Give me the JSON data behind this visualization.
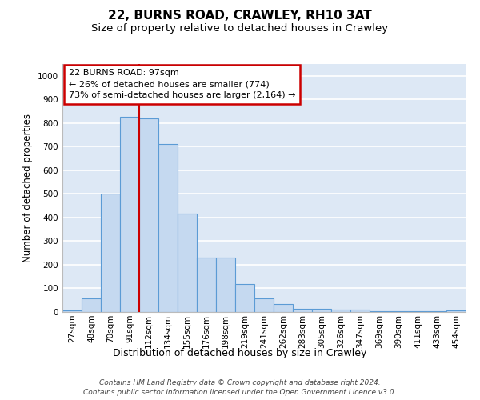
{
  "title1": "22, BURNS ROAD, CRAWLEY, RH10 3AT",
  "title2": "Size of property relative to detached houses in Crawley",
  "xlabel": "Distribution of detached houses by size in Crawley",
  "ylabel": "Number of detached properties",
  "categories": [
    "27sqm",
    "48sqm",
    "70sqm",
    "91sqm",
    "112sqm",
    "134sqm",
    "155sqm",
    "176sqm",
    "198sqm",
    "219sqm",
    "241sqm",
    "262sqm",
    "283sqm",
    "305sqm",
    "326sqm",
    "347sqm",
    "369sqm",
    "390sqm",
    "411sqm",
    "433sqm",
    "454sqm"
  ],
  "values": [
    8,
    57,
    500,
    825,
    820,
    710,
    415,
    230,
    230,
    120,
    57,
    35,
    15,
    15,
    10,
    10,
    5,
    5,
    3,
    3,
    8
  ],
  "bar_color": "#c5d9f0",
  "bar_edge_color": "#5b9bd5",
  "background_color": "#dde8f5",
  "grid_color": "#ffffff",
  "vline_color": "#cc0000",
  "annotation_box_text": "22 BURNS ROAD: 97sqm\n← 26% of detached houses are smaller (774)\n73% of semi-detached houses are larger (2,164) →",
  "annotation_box_color": "#cc0000",
  "ylim": [
    0,
    1050
  ],
  "yticks": [
    0,
    100,
    200,
    300,
    400,
    500,
    600,
    700,
    800,
    900,
    1000
  ],
  "footer1": "Contains HM Land Registry data © Crown copyright and database right 2024.",
  "footer2": "Contains public sector information licensed under the Open Government Licence v3.0.",
  "title1_fontsize": 11,
  "title2_fontsize": 9.5,
  "ylabel_fontsize": 8.5,
  "xlabel_fontsize": 9,
  "tick_fontsize": 7.5,
  "ann_fontsize": 8,
  "footer_fontsize": 6.5
}
